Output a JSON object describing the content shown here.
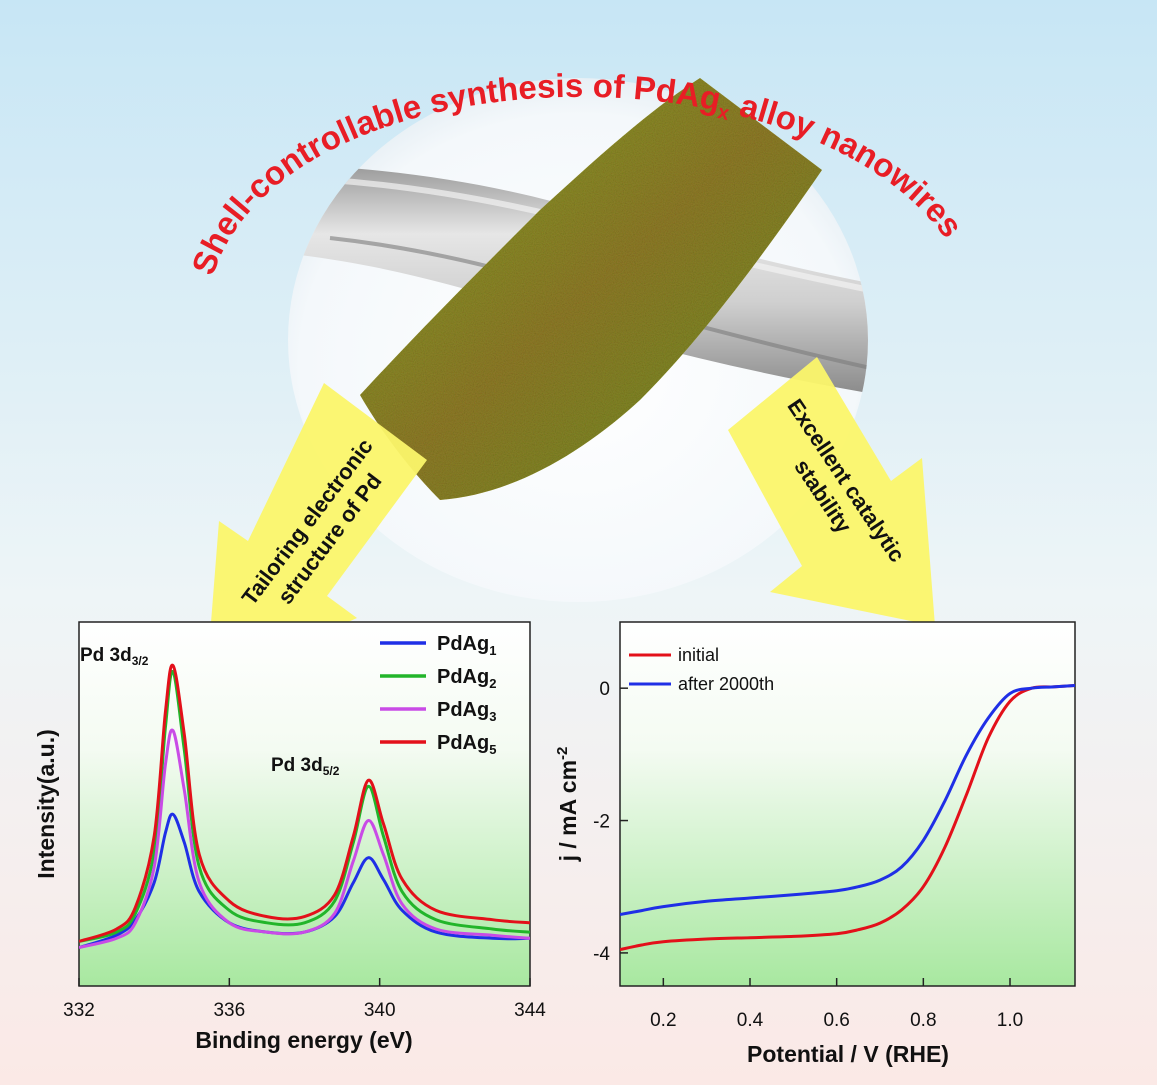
{
  "graphic": {
    "title_main": "Shell-controllable synthesis of PdAg",
    "title_sub": "x",
    "title_tail": " alloy nanowires",
    "left_arrow": {
      "line1": "Tailoring electronic",
      "line2": "structure of Pd"
    },
    "right_arrow": {
      "line1": "Excellent catalytic",
      "line2": "stability"
    }
  },
  "colors": {
    "title": "#e81d25",
    "PdAg1": "#1f2fe6",
    "PdAg2": "#22b52a",
    "PdAg3": "#c94be6",
    "PdAg5": "#e3101a",
    "initial": "#e3101a",
    "after": "#1f2fe6",
    "arrow": "#fbf56a"
  },
  "chart_data": [
    {
      "type": "line",
      "xlabel": "Binding energy (eV)",
      "ylabel": "Intensity(a.u.)",
      "xlim": [
        332,
        344
      ],
      "xticks": [
        332,
        336,
        340,
        344
      ],
      "legend_position": "top-right",
      "annotations": [
        {
          "base": "Pd 3d",
          "sub": "3/2"
        },
        {
          "base": "Pd 3d",
          "sub": "5/2"
        }
      ],
      "series": [
        {
          "base": "PdAg",
          "sub": "1",
          "color": "#1f2fe6",
          "x": [
            332,
            333,
            333.5,
            334,
            334.3,
            334.5,
            334.8,
            335.2,
            336,
            337,
            338,
            338.8,
            339.3,
            339.7,
            340.1,
            340.6,
            341.5,
            343,
            344
          ],
          "y": [
            0.04,
            0.08,
            0.13,
            0.25,
            0.41,
            0.47,
            0.38,
            0.22,
            0.12,
            0.09,
            0.09,
            0.14,
            0.25,
            0.33,
            0.26,
            0.16,
            0.09,
            0.07,
            0.07
          ]
        },
        {
          "base": "PdAg",
          "sub": "2",
          "color": "#22b52a",
          "x": [
            332,
            333,
            333.5,
            334,
            334.3,
            334.5,
            334.8,
            335.2,
            336,
            337,
            338,
            338.8,
            339.3,
            339.7,
            340.1,
            340.6,
            341.5,
            343,
            344
          ],
          "y": [
            0.06,
            0.09,
            0.15,
            0.35,
            0.75,
            0.93,
            0.68,
            0.3,
            0.16,
            0.12,
            0.12,
            0.19,
            0.38,
            0.56,
            0.4,
            0.22,
            0.13,
            0.1,
            0.09
          ]
        },
        {
          "base": "PdAg",
          "sub": "3",
          "color": "#c94be6",
          "x": [
            332,
            333,
            333.5,
            334,
            334.3,
            334.5,
            334.8,
            335.2,
            336,
            337,
            338,
            338.8,
            339.3,
            339.7,
            340.1,
            340.6,
            341.5,
            343,
            344
          ],
          "y": [
            0.04,
            0.07,
            0.12,
            0.3,
            0.63,
            0.74,
            0.55,
            0.25,
            0.12,
            0.09,
            0.09,
            0.15,
            0.32,
            0.45,
            0.34,
            0.18,
            0.1,
            0.08,
            0.07
          ]
        },
        {
          "base": "PdAg",
          "sub": "5",
          "color": "#e3101a",
          "x": [
            332,
            333,
            333.5,
            334,
            334.3,
            334.5,
            334.8,
            335.2,
            336,
            337,
            338,
            338.8,
            339.3,
            339.7,
            340.1,
            340.6,
            341.5,
            343,
            344
          ],
          "y": [
            0.06,
            0.1,
            0.17,
            0.4,
            0.8,
            0.95,
            0.73,
            0.34,
            0.19,
            0.14,
            0.14,
            0.21,
            0.4,
            0.58,
            0.44,
            0.26,
            0.16,
            0.13,
            0.12
          ]
        }
      ]
    },
    {
      "type": "line",
      "xlabel": "Potential / V (RHE)",
      "ylabel_base": "j / mA cm",
      "ylabel_sup": "-2",
      "xlim": [
        0.1,
        1.15
      ],
      "ylim": [
        -4.5,
        1.0
      ],
      "xticks": [
        "0.2",
        "0.4",
        "0.6",
        "0.8",
        "1.0"
      ],
      "yticks": [
        "0",
        "-2",
        "-4"
      ],
      "legend_position": "top-left",
      "series": [
        {
          "name": "initial",
          "color": "#e3101a",
          "x": [
            0.1,
            0.15,
            0.2,
            0.3,
            0.4,
            0.5,
            0.6,
            0.65,
            0.7,
            0.75,
            0.8,
            0.85,
            0.9,
            0.95,
            1.0,
            1.05,
            1.1,
            1.15
          ],
          "y": [
            -3.95,
            -3.88,
            -3.83,
            -3.79,
            -3.77,
            -3.75,
            -3.71,
            -3.65,
            -3.55,
            -3.35,
            -3.0,
            -2.4,
            -1.6,
            -0.75,
            -0.2,
            0.0,
            0.02,
            0.04
          ]
        },
        {
          "name": "after 2000th",
          "color": "#1f2fe6",
          "x": [
            0.1,
            0.15,
            0.2,
            0.3,
            0.4,
            0.5,
            0.6,
            0.65,
            0.7,
            0.75,
            0.8,
            0.85,
            0.9,
            0.95,
            1.0,
            1.05,
            1.1,
            1.15
          ],
          "y": [
            -3.42,
            -3.36,
            -3.3,
            -3.22,
            -3.17,
            -3.12,
            -3.06,
            -3.0,
            -2.9,
            -2.7,
            -2.3,
            -1.7,
            -1.0,
            -0.45,
            -0.08,
            0.0,
            0.02,
            0.04
          ]
        }
      ]
    }
  ]
}
